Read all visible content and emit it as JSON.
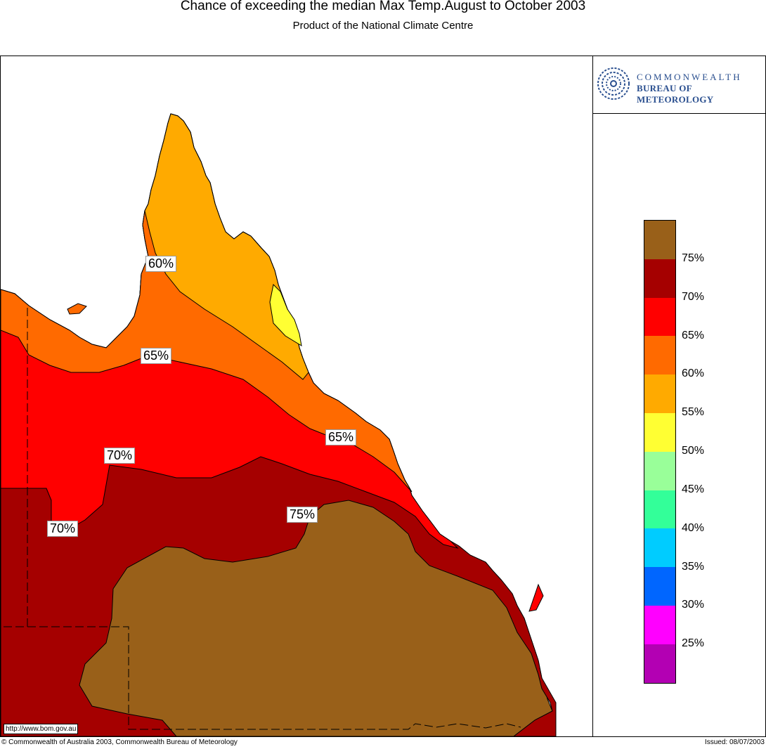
{
  "title": "Chance of exceeding the median Max Temp.August to October 2003",
  "subtitle": "Product of the National Climate Centre",
  "logo": {
    "icon": "bom-swirl-icon",
    "line1": "COMMONWEALTH",
    "line2": "BUREAU OF METEOROLOGY"
  },
  "legend": {
    "swatches": [
      "#996019",
      "#a50000",
      "#ff0000",
      "#ff6a00",
      "#ffaa00",
      "#ffff33",
      "#99ff99",
      "#33ff99",
      "#00ccff",
      "#0066ff",
      "#ff00ff",
      "#b300b3"
    ],
    "labels": [
      "75%",
      "70%",
      "65%",
      "60%",
      "55%",
      "50%",
      "45%",
      "40%",
      "35%",
      "30%",
      "25%"
    ]
  },
  "map_labels": [
    "60%",
    "65%",
    "65%",
    "70%",
    "70%",
    "75%"
  ],
  "url": "http://www.bom.gov.au",
  "footer": {
    "copyright": "© Commonwealth of Australia 2003, Commonwealth Bureau of Meteorology",
    "issued": "Issued: 08/07/2003"
  }
}
